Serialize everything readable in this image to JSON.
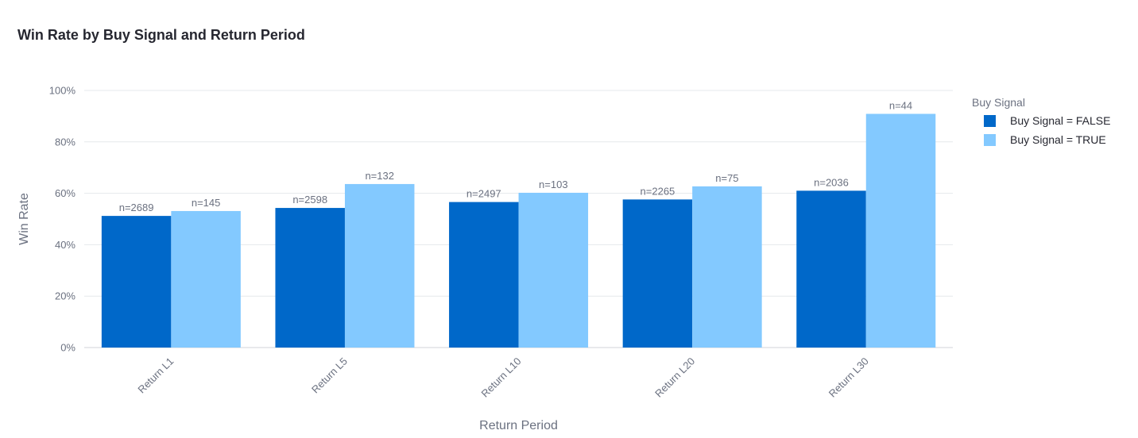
{
  "chart_data": {
    "type": "bar",
    "title": "Win Rate by Buy Signal and Return Period",
    "xlabel": "Return Period",
    "ylabel": "Win Rate",
    "categories": [
      "Return L1",
      "Return L5",
      "Return L10",
      "Return L20",
      "Return L30"
    ],
    "ylim": [
      0,
      100
    ],
    "y_ticks": [
      "0%",
      "20%",
      "40%",
      "60%",
      "80%",
      "100%"
    ],
    "y_tick_values": [
      0,
      20,
      40,
      60,
      80,
      100
    ],
    "grid": true,
    "legend": {
      "title": "Buy Signal",
      "placement": "top-right"
    },
    "series": [
      {
        "name": "Buy Signal = FALSE",
        "color": "#0068c9",
        "values": [
          51.2,
          54.3,
          56.6,
          57.6,
          61.0
        ],
        "labels": [
          "n=2689",
          "n=2598",
          "n=2497",
          "n=2265",
          "n=2036"
        ]
      },
      {
        "name": "Buy Signal = TRUE",
        "color": "#83c9ff",
        "values": [
          53.1,
          63.6,
          60.2,
          62.7,
          90.9
        ],
        "labels": [
          "n=145",
          "n=132",
          "n=103",
          "n=75",
          "n=44"
        ]
      }
    ]
  }
}
